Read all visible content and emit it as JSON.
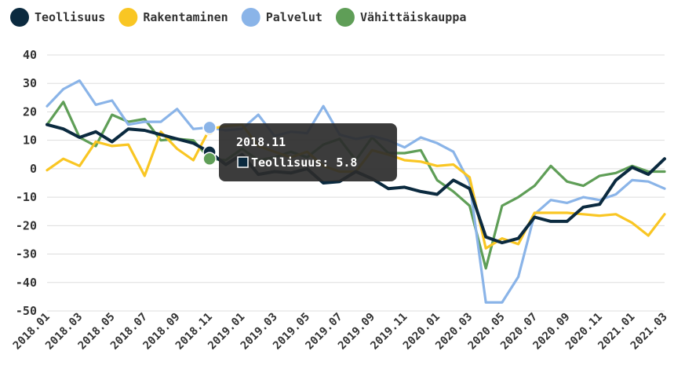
{
  "chart_data": {
    "type": "line",
    "title": "",
    "xlabel": "",
    "ylabel": "",
    "ylim": [
      -50,
      40
    ],
    "y_ticks": [
      40,
      30,
      20,
      10,
      0,
      -10,
      -20,
      -30,
      -40,
      -50
    ],
    "grid": true,
    "legend_position": "top-left",
    "x": [
      "2018.01",
      "2018.02",
      "2018.03",
      "2018.04",
      "2018.05",
      "2018.06",
      "2018.07",
      "2018.08",
      "2018.09",
      "2018.10",
      "2018.11",
      "2018.12",
      "2019.01",
      "2019.02",
      "2019.03",
      "2019.04",
      "2019.05",
      "2019.06",
      "2019.07",
      "2019.08",
      "2019.09",
      "2019.10",
      "2019.11",
      "2019.12",
      "2020.01",
      "2020.02",
      "2020.03",
      "2020.04",
      "2020.05",
      "2020.06",
      "2020.07",
      "2020.08",
      "2020.09",
      "2020.10",
      "2020.11",
      "2020.12",
      "2021.01",
      "2021.02",
      "2021.03"
    ],
    "x_tick_labels": [
      "2018.01",
      "2018.03",
      "2018.05",
      "2018.07",
      "2018.09",
      "2018.11",
      "2019.01",
      "2019.03",
      "2019.05",
      "2019.07",
      "2019.09",
      "2019.11",
      "2020.01",
      "2020.03",
      "2020.05",
      "2020.07",
      "2020.09",
      "2020.11",
      "2021.01",
      "2021.03"
    ],
    "series": [
      {
        "name": "Teollisuus",
        "color": "#0b2a3f",
        "values": [
          15.5,
          14,
          11,
          13,
          9.5,
          14,
          13.5,
          12,
          10.5,
          9,
          5.8,
          1.5,
          5,
          -2,
          -1,
          -1.5,
          0,
          -5,
          -4.5,
          -1,
          -3.5,
          -7,
          -6.5,
          -8,
          -9,
          -4,
          -7,
          -24,
          -26,
          -24.5,
          -17,
          -18.5,
          -18.5,
          -13.5,
          -12.5,
          -4,
          0.5,
          -2,
          3.5
        ]
      },
      {
        "name": "Rakentaminen",
        "color": "#f9c623",
        "values": [
          -0.5,
          3.5,
          1,
          9.5,
          8,
          8.5,
          -2.5,
          13,
          7,
          3,
          14,
          15,
          15.5,
          8,
          6,
          4,
          6,
          1,
          -1,
          -1,
          6.5,
          5,
          3,
          2.5,
          1,
          1.5,
          -3,
          -28,
          -24.5,
          -26.5,
          -15.5,
          -15.5,
          -15.5,
          -16,
          -16.5,
          -16,
          -19,
          -23.5,
          -16
        ]
      },
      {
        "name": "Palvelut",
        "color": "#8ab4e8",
        "values": [
          22,
          28,
          31,
          22.5,
          24,
          15.5,
          16.5,
          16.5,
          21,
          14,
          14.5,
          13.5,
          14,
          19,
          11.5,
          13,
          12.5,
          22,
          12,
          10.5,
          11.5,
          10,
          7.5,
          11,
          9,
          6,
          -5,
          -47,
          -47,
          -38,
          -16,
          -11,
          -12,
          -10,
          -11,
          -9,
          -4,
          -4.5,
          -7
        ]
      },
      {
        "name": "Vähittäiskauppa",
        "color": "#5f9e57",
        "values": [
          15.5,
          23.5,
          11,
          8,
          19,
          16.5,
          17.5,
          10,
          10.5,
          10,
          3.5,
          3,
          7,
          3,
          4,
          6,
          4,
          8.5,
          10.5,
          3,
          11,
          5.5,
          5.5,
          6.5,
          -4,
          -8,
          -13,
          -35,
          -13,
          -10,
          -6,
          1,
          -4.5,
          -6,
          -2.5,
          -1.5,
          1,
          -1,
          -1
        ]
      }
    ]
  },
  "tooltip": {
    "period": "2018.11",
    "text": "Teollisuus: 5.8",
    "highlight_index": 10
  }
}
